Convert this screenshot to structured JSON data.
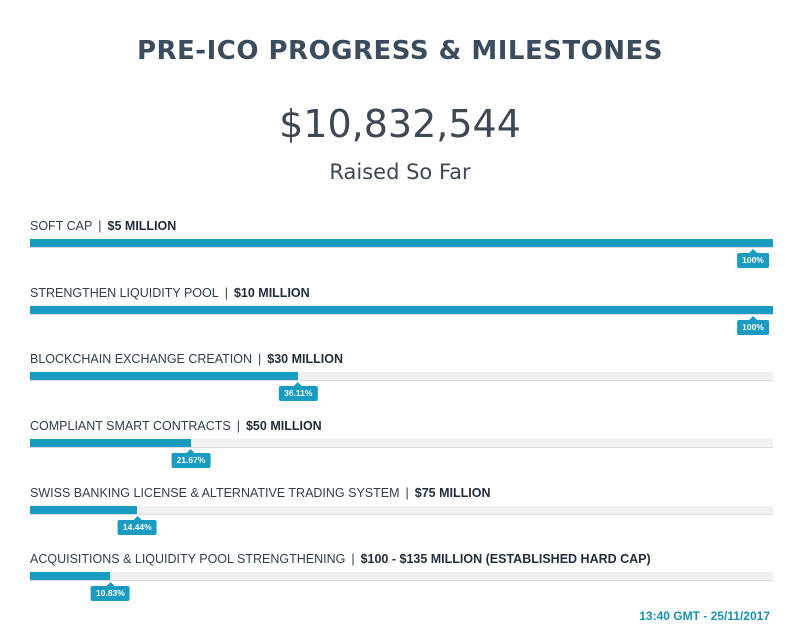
{
  "page": {
    "title": "PRE-ICO PROGRESS & MILESTONES",
    "amount_raised": "$10,832,544",
    "amount_caption": "Raised So Far",
    "timestamp": "13:40 GMT - 25/11/2017"
  },
  "colors": {
    "accent": "#1a9cc2",
    "heading": "#3b4c5e",
    "track": "#eef0f2"
  },
  "milestones": [
    {
      "name": "SOFT CAP",
      "target": "$5 MILLION",
      "progress": 1.0,
      "progress_label": "100%"
    },
    {
      "name": "STRENGTHEN LIQUIDITY POOL",
      "target": "$10 MILLION",
      "progress": 1.0,
      "progress_label": "100%"
    },
    {
      "name": "BLOCKCHAIN EXCHANGE CREATION",
      "target": "$30 MILLION",
      "progress": 0.3611,
      "progress_label": "36.11%"
    },
    {
      "name": "COMPLIANT SMART CONTRACTS",
      "target": "$50 MILLION",
      "progress": 0.2167,
      "progress_label": "21.67%"
    },
    {
      "name": "SWISS BANKING LICENSE & ALTERNATIVE TRADING SYSTEM",
      "target": "$75 MILLION",
      "progress": 0.1444,
      "progress_label": "14.44%"
    },
    {
      "name": "ACQUISITIONS & LIQUIDITY POOL STRENGTHENING",
      "target": "$100 - $135 MILLION (ESTABLISHED HARD CAP)",
      "progress": 0.1083,
      "progress_label": "10.83%"
    }
  ]
}
